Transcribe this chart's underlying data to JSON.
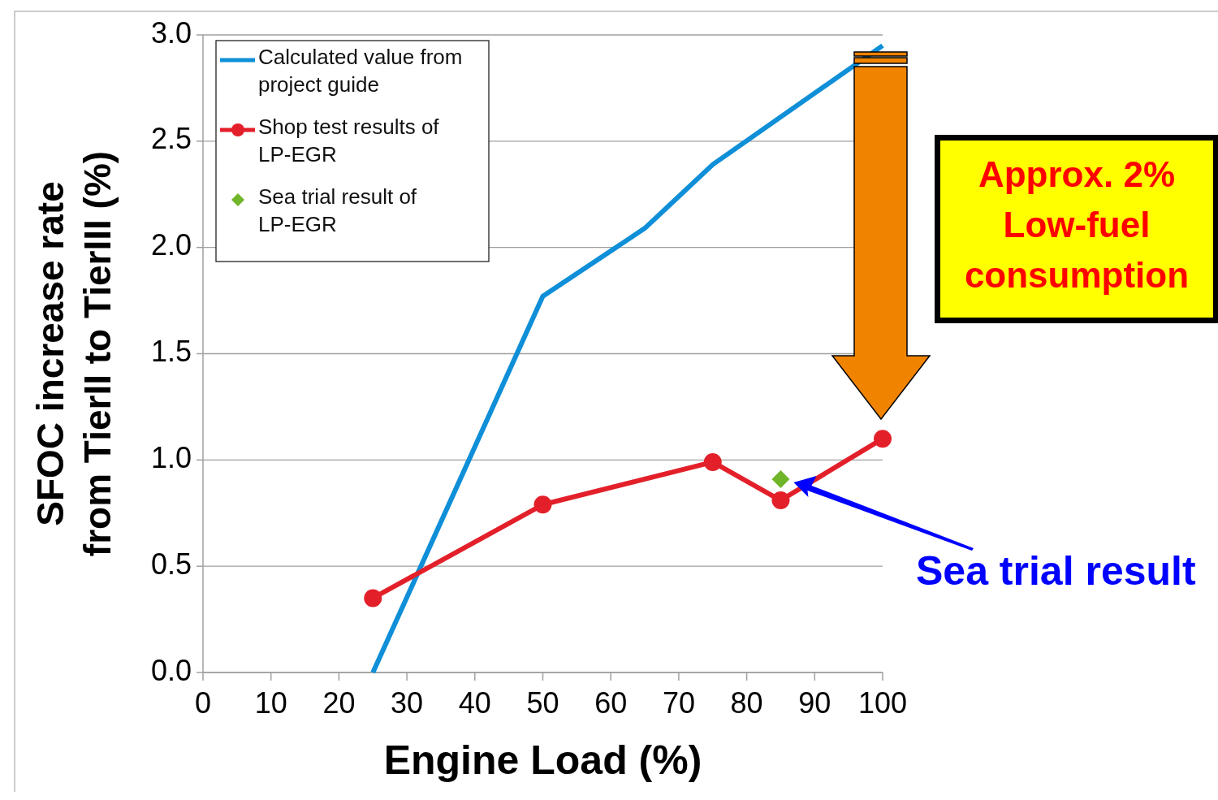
{
  "chart_data": {
    "type": "line",
    "xlabel": "Engine Load (%)",
    "ylabel": "SFOC increase rate\nfrom TierII to TierIII (%)",
    "xlim": [
      0,
      100
    ],
    "xticks": [
      0,
      10,
      20,
      30,
      40,
      50,
      60,
      70,
      80,
      90,
      100
    ],
    "ylim": [
      0,
      3
    ],
    "yticks": [
      {
        "value": 0,
        "label": "0.0"
      },
      {
        "value": 0.5,
        "label": "0.5"
      },
      {
        "value": 1,
        "label": "1.0"
      },
      {
        "value": 1.5,
        "label": "1.5"
      },
      {
        "value": 2,
        "label": "2.0"
      },
      {
        "value": 2.5,
        "label": "2.5"
      },
      {
        "value": 3,
        "label": "3.0"
      }
    ],
    "grid": "y",
    "legend": "top left",
    "series": [
      {
        "name": "Calculated value from\nproject guide",
        "color": "#0f8fd8",
        "marker": "none",
        "x": [
          25,
          50,
          65,
          75,
          100
        ],
        "values": [
          0,
          1.77,
          2.09,
          2.39,
          2.95
        ]
      },
      {
        "name": "Shop test results of\nLP-EGR",
        "color": "#e3202a",
        "marker": "circle",
        "x": [
          25,
          50,
          75,
          85,
          100
        ],
        "values": [
          0.35,
          0.79,
          0.99,
          0.81,
          1.1
        ]
      },
      {
        "name": "Sea trial result of\nLP-EGR",
        "type": "scatter",
        "color": "#70b52a",
        "marker": "diamond",
        "x": [
          85
        ],
        "values": [
          0.91
        ]
      }
    ],
    "annotations": [
      {
        "text": "Approx. 2%\nLow-fuel\nconsumption"
      },
      "Sea trial result"
    ]
  }
}
